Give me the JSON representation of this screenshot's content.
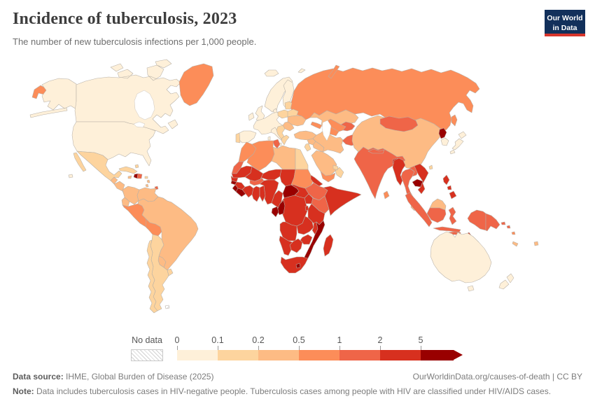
{
  "header": {
    "title": "Incidence of tuberculosis, 2023",
    "subtitle": "The number of new tuberculosis infections per 1,000 people.",
    "logo_line1": "Our World",
    "logo_line2": "in Data",
    "logo_bg": "#12305b",
    "logo_accent": "#d7352c"
  },
  "legend": {
    "no_data_label": "No data",
    "tick_labels": [
      "0",
      "0.1",
      "0.2",
      "0.5",
      "1",
      "2",
      "5"
    ]
  },
  "footer": {
    "source_label": "Data source:",
    "source_text": " IHME, Global Burden of Disease (2025)",
    "link_text": "OurWorldinData.org/causes-of-death | CC BY",
    "note_label": "Note:",
    "note_text": " Data includes tuberculosis cases in HIV-negative people. Tuberculosis cases among people with HIV are classified under HIV/AIDS cases."
  },
  "chart_data": {
    "type": "choropleth-map",
    "title": "Incidence of tuberculosis, 2023",
    "unit": "new tuberculosis infections per 1,000 people",
    "year": "2023",
    "legend_position": "bottom",
    "bins": [
      {
        "label": "0",
        "min": 0,
        "max": 0.1,
        "color": "#fef0d9"
      },
      {
        "label": "0.1",
        "min": 0.1,
        "max": 0.2,
        "color": "#fdd49e"
      },
      {
        "label": "0.2",
        "min": 0.2,
        "max": 0.5,
        "color": "#fdbb84"
      },
      {
        "label": "0.5",
        "min": 0.5,
        "max": 1,
        "color": "#fc8d59"
      },
      {
        "label": "1",
        "min": 1,
        "max": 2,
        "color": "#ef6548"
      },
      {
        "label": "2",
        "min": 2,
        "max": 5,
        "color": "#d7301f"
      },
      {
        "label": "5",
        "min": 5,
        "max": null,
        "color": "#990000"
      }
    ],
    "no_data_color": "hatched",
    "countries": {
      "russia": 3,
      "greenland": 3,
      "iceland": 0,
      "svalbard": 0,
      "norway-sweden": 0,
      "finland": 0,
      "denmark": 0,
      "uk": 0,
      "ireland": 0,
      "west-europe": 0,
      "spain": 0,
      "portugal": 1,
      "italy": 0,
      "poland": 1,
      "baltics": 1,
      "belarus": 1,
      "ukraine": 2,
      "romania-moldova": 2,
      "balkans": 1,
      "greece": 1,
      "turkey": 2,
      "syria": 2,
      "israel-jordan": 1,
      "iraq": 2,
      "caucasus": 3,
      "iran": 2,
      "afghanistan": 4,
      "turkmenistan": 3,
      "uzbekistan": 3,
      "kyrgyz-tajik": 4,
      "kazakhstan": 2,
      "saudi-arabia": 2,
      "yemen": 3,
      "oman": 1,
      "uae-qatar": 1,
      "china": 2,
      "mongolia": 4,
      "north-korea": 6,
      "south-korea": 0,
      "japan": 0,
      "taiwan": 1,
      "india": 4,
      "nepal-bhutan": 4,
      "bangladesh": 5,
      "sri-lanka": 3,
      "myanmar": 5,
      "thailand": 4,
      "laos": 4,
      "cambodia": 6,
      "vietnam": 5,
      "malaysia": 2,
      "indonesia": 4,
      "timor": 5,
      "papua-new-guinea": 4,
      "philippines": 5,
      "solomon-islands": 4,
      "vanuatu": 3,
      "fiji": 2,
      "new-caledonia": 2,
      "australia": 0,
      "new-zealand": 0,
      "canada": 0,
      "usa": 0,
      "mexico": 1,
      "guatemala": 2,
      "honduras-nicaragua": 2,
      "costa-rica-panama": 2,
      "cuba": 1,
      "jamaica": 2,
      "haiti": 6,
      "dominican-republic": 4,
      "puerto-rico": 1,
      "bahamas": 1,
      "trinidad": 4,
      "lesser-antilles": 2,
      "colombia": 2,
      "venezuela": 2,
      "guyana-suriname": 3,
      "french-guiana": -1,
      "ecuador": 2,
      "peru": 3,
      "bolivia": 3,
      "brazil": 2,
      "paraguay": 2,
      "uruguay": 1,
      "argentina": 1,
      "chile": 1,
      "falkland": -1,
      "morocco": 3,
      "western-sahara": 4,
      "algeria": 3,
      "tunisia": 4,
      "libya": 2,
      "egypt": 1,
      "mauritania": 5,
      "senegal-gambia": 5,
      "mali": 5,
      "niger": 5,
      "chad": 5,
      "sudan": 3,
      "eritrea-djibouti": 5,
      "ethiopia": 4,
      "somalia": 5,
      "guinea-bissau": 6,
      "guinea": 5,
      "sierra-leone": 6,
      "liberia": 6,
      "cote-divoire": 5,
      "burkina-faso": 4,
      "ghana": 5,
      "togo-benin": 5,
      "nigeria": 5,
      "cameroon": 5,
      "central-african-republic": 6,
      "south-sudan": 5,
      "uganda": 5,
      "kenya": 4,
      "drc": 5,
      "congo": 6,
      "gabon": 6,
      "rwanda-burundi": 5,
      "tanzania": 5,
      "angola": 5,
      "zambia": 5,
      "malawi": 5,
      "mozambique": 6,
      "zimbabwe": 5,
      "botswana": 5,
      "namibia": 5,
      "south-africa": 5,
      "lesotho": 6,
      "madagascar": 5
    }
  }
}
